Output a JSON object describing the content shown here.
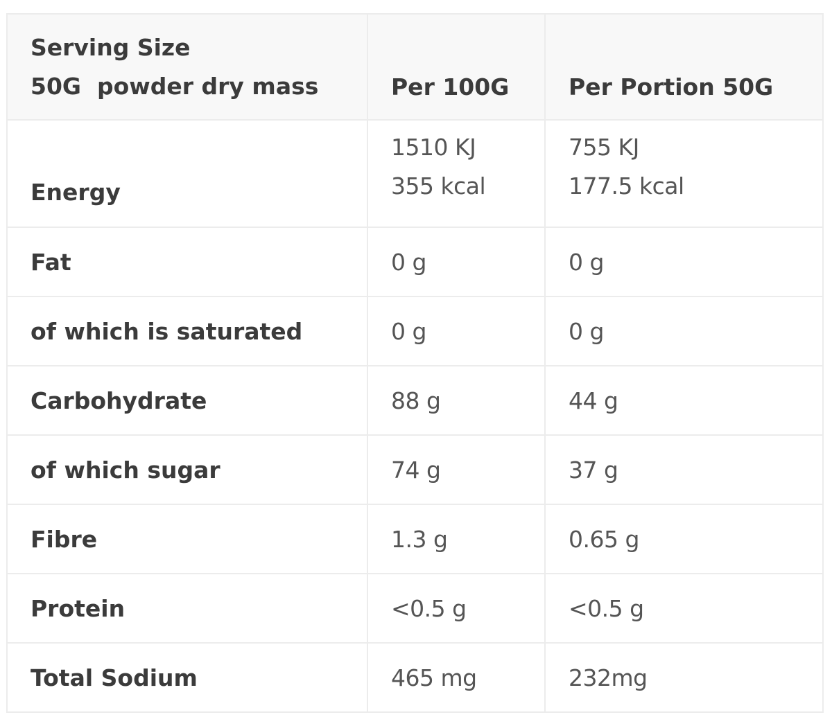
{
  "header": {
    "nutrient_line1": "Serving Size",
    "nutrient_line2": "50G  powder dry mass",
    "per100": "Per 100G",
    "perPortion": "Per Portion 50G"
  },
  "rows": [
    {
      "label": "Energy",
      "per100": [
        "1510 KJ",
        "355 kcal"
      ],
      "perPortion": [
        "755 KJ",
        "177.5 kcal"
      ]
    },
    {
      "label": "Fat",
      "per100": "0 g",
      "perPortion": "0 g"
    },
    {
      "label": "of which is saturated",
      "per100": "0 g",
      "perPortion": "0 g"
    },
    {
      "label": "Carbohydrate",
      "per100": "88 g",
      "perPortion": "44 g"
    },
    {
      "label": "of which sugar",
      "per100": "74 g",
      "perPortion": "37 g"
    },
    {
      "label": "Fibre",
      "per100": "1.3 g",
      "perPortion": "0.65 g"
    },
    {
      "label": "Protein",
      "per100": "<0.5 g",
      "perPortion": "<0.5 g"
    },
    {
      "label": "Total Sodium",
      "per100": "465 mg",
      "perPortion": "232mg"
    }
  ],
  "colors": {
    "header_background": "#f8f8f8",
    "border": "#ececec",
    "label_text": "#3b3b3b",
    "value_text": "#555555"
  }
}
